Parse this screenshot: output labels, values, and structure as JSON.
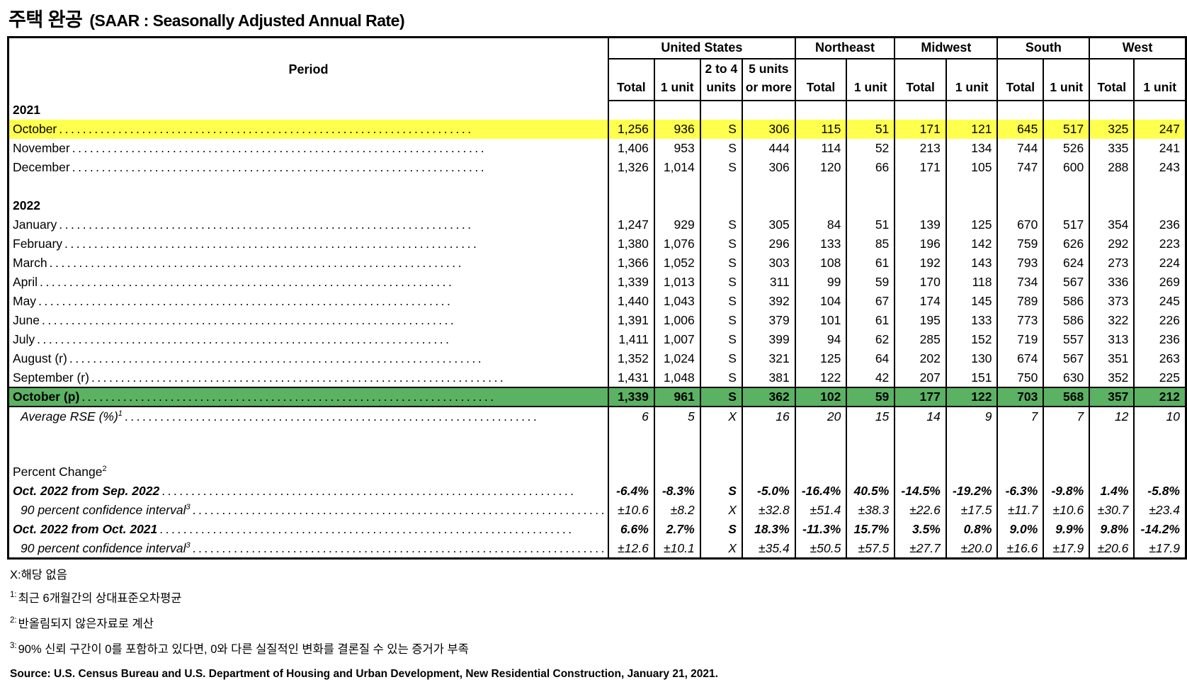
{
  "title": {
    "korean": "주택 완공",
    "english": "(SAAR : Seasonally Adjusted Annual Rate)"
  },
  "colors": {
    "highlight_yellow": "#FFFF4D",
    "highlight_green": "#5BB263",
    "border": "#000000"
  },
  "table": {
    "period_header": "Period",
    "groups": [
      {
        "label": "United States",
        "span": 4
      },
      {
        "label": "Northeast",
        "span": 2
      },
      {
        "label": "Midwest",
        "span": 2
      },
      {
        "label": "South",
        "span": 2
      },
      {
        "label": "West",
        "span": 2
      }
    ],
    "subcolumns": [
      [
        "Total"
      ],
      [
        "1 unit"
      ],
      [
        "2 to 4",
        "units"
      ],
      [
        "5 units",
        "or more"
      ],
      [
        "Total"
      ],
      [
        "1 unit"
      ],
      [
        "Total"
      ],
      [
        "1 unit"
      ],
      [
        "Total"
      ],
      [
        "1 unit"
      ],
      [
        "Total"
      ],
      [
        "1 unit"
      ]
    ],
    "rows": [
      {
        "type": "year",
        "label": "2021"
      },
      {
        "type": "data",
        "label": "October",
        "highlight": "yellow",
        "values": [
          "1,256",
          "936",
          "S",
          "306",
          "115",
          "51",
          "171",
          "121",
          "645",
          "517",
          "325",
          "247"
        ]
      },
      {
        "type": "data",
        "label": "November",
        "values": [
          "1,406",
          "953",
          "S",
          "444",
          "114",
          "52",
          "213",
          "134",
          "744",
          "526",
          "335",
          "241"
        ]
      },
      {
        "type": "data",
        "label": "December",
        "values": [
          "1,326",
          "1,014",
          "S",
          "306",
          "120",
          "66",
          "171",
          "105",
          "747",
          "600",
          "288",
          "243"
        ]
      },
      {
        "type": "blank"
      },
      {
        "type": "year",
        "label": "2022"
      },
      {
        "type": "data",
        "label": "January",
        "values": [
          "1,247",
          "929",
          "S",
          "305",
          "84",
          "51",
          "139",
          "125",
          "670",
          "517",
          "354",
          "236"
        ]
      },
      {
        "type": "data",
        "label": "February",
        "values": [
          "1,380",
          "1,076",
          "S",
          "296",
          "133",
          "85",
          "196",
          "142",
          "759",
          "626",
          "292",
          "223"
        ]
      },
      {
        "type": "data",
        "label": "March",
        "values": [
          "1,366",
          "1,052",
          "S",
          "303",
          "108",
          "61",
          "192",
          "143",
          "793",
          "624",
          "273",
          "224"
        ]
      },
      {
        "type": "data",
        "label": "April",
        "values": [
          "1,339",
          "1,013",
          "S",
          "311",
          "99",
          "59",
          "170",
          "118",
          "734",
          "567",
          "336",
          "269"
        ]
      },
      {
        "type": "data",
        "label": "May",
        "values": [
          "1,440",
          "1,043",
          "S",
          "392",
          "104",
          "67",
          "174",
          "145",
          "789",
          "586",
          "373",
          "245"
        ]
      },
      {
        "type": "data",
        "label": "June",
        "values": [
          "1,391",
          "1,006",
          "S",
          "379",
          "101",
          "61",
          "195",
          "133",
          "773",
          "586",
          "322",
          "226"
        ]
      },
      {
        "type": "data",
        "label": "July",
        "values": [
          "1,411",
          "1,007",
          "S",
          "399",
          "94",
          "62",
          "285",
          "152",
          "719",
          "557",
          "313",
          "236"
        ]
      },
      {
        "type": "data",
        "label": "August (r)",
        "values": [
          "1,352",
          "1,024",
          "S",
          "321",
          "125",
          "64",
          "202",
          "130",
          "674",
          "567",
          "351",
          "263"
        ]
      },
      {
        "type": "data",
        "label": "September (r)",
        "values": [
          "1,431",
          "1,048",
          "S",
          "381",
          "122",
          "42",
          "207",
          "151",
          "750",
          "630",
          "352",
          "225"
        ]
      },
      {
        "type": "data",
        "label": "October (p)",
        "highlight": "green",
        "bold": true,
        "values": [
          "1,339",
          "961",
          "S",
          "362",
          "102",
          "59",
          "177",
          "122",
          "703",
          "568",
          "357",
          "212"
        ]
      },
      {
        "type": "data",
        "label": "Average RSE (%)",
        "sup": "1",
        "style": "italic",
        "indent": true,
        "values": [
          "6",
          "5",
          "X",
          "16",
          "20",
          "15",
          "14",
          "9",
          "7",
          "7",
          "12",
          "10"
        ]
      },
      {
        "type": "gap"
      },
      {
        "type": "section",
        "label": "Percent Change",
        "sup": "2"
      },
      {
        "type": "data",
        "label": "Oct. 2022 from Sep. 2022",
        "style": "bold-italic",
        "values": [
          "-6.4%",
          "-8.3%",
          "S",
          "-5.0%",
          "-16.4%",
          "40.5%",
          "-14.5%",
          "-19.2%",
          "-6.3%",
          "-9.8%",
          "1.4%",
          "-5.8%"
        ]
      },
      {
        "type": "data",
        "label": "90 percent confidence interval",
        "sup": "3",
        "style": "italic",
        "indent": true,
        "values": [
          "±10.6",
          "±8.2",
          "X",
          "±32.8",
          "±51.4",
          "±38.3",
          "±22.6",
          "±17.5",
          "±11.7",
          "±10.6",
          "±30.7",
          "±23.4"
        ]
      },
      {
        "type": "data",
        "label": "Oct. 2022 from Oct. 2021",
        "style": "bold-italic",
        "values": [
          "6.6%",
          "2.7%",
          "S",
          "18.3%",
          "-11.3%",
          "15.7%",
          "3.5%",
          "0.8%",
          "9.0%",
          "9.9%",
          "9.8%",
          "-14.2%"
        ]
      },
      {
        "type": "data",
        "label": "90 percent confidence interval",
        "sup": "3",
        "style": "italic",
        "indent": true,
        "values": [
          "±12.6",
          "±10.1",
          "X",
          "±35.4",
          "±50.5",
          "±57.5",
          "±27.7",
          "±20.0",
          "±16.6",
          "±17.9",
          "±20.6",
          "±17.9"
        ]
      }
    ]
  },
  "footnotes": [
    {
      "marker": "",
      "text": "X:해당 없음"
    },
    {
      "marker": "1:",
      "text": "최근 6개월간의 상대표준오차평균"
    },
    {
      "marker": "2:",
      "text": "반올림되지 않은자료로 계산"
    },
    {
      "marker": "3:",
      "text": "90% 신뢰 구간이 0를 포함하고 있다면, 0와 다른 실질적인 변화를 결론질 수 있는 증거가 부족"
    }
  ],
  "source": {
    "text": "Source: U.S. Census Bureau and U.S. Department of Housing and Urban Development, New Residential Construction, January 21, 2021."
  }
}
